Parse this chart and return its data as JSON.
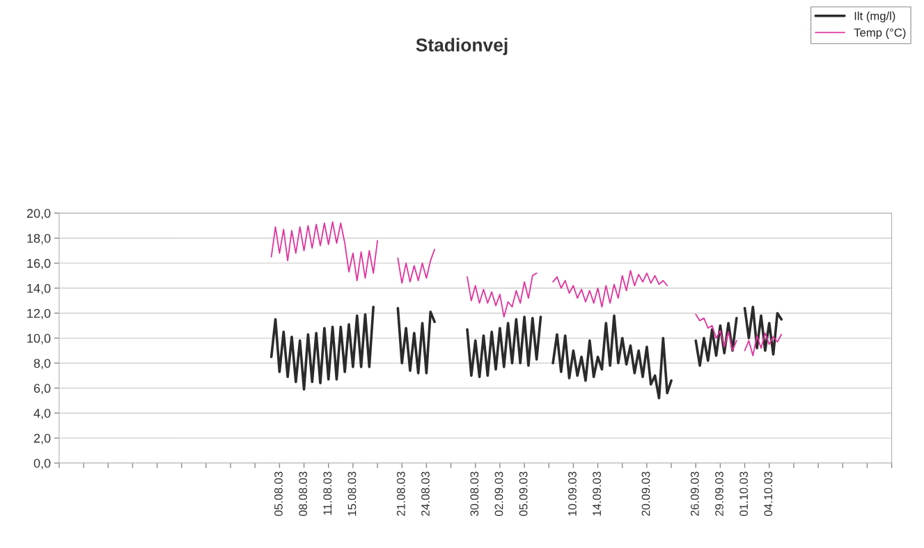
{
  "chart_data": {
    "type": "line",
    "title": "Stadionvej",
    "categories": [
      null,
      null,
      null,
      null,
      null,
      null,
      null,
      null,
      null,
      null,
      null,
      null,
      null,
      null,
      null,
      null,
      null,
      null,
      null,
      null,
      null,
      null,
      null,
      null,
      null,
      null,
      null,
      null,
      null,
      null,
      null,
      null,
      null,
      null,
      null,
      null,
      null,
      null,
      null,
      null,
      null,
      null,
      null,
      null,
      null,
      null,
      null,
      null,
      null,
      null,
      null,
      null,
      null,
      null,
      "05.08.03",
      null,
      null,
      null,
      null,
      null,
      "08.08.03",
      null,
      null,
      null,
      null,
      null,
      "11.08.03",
      null,
      null,
      null,
      null,
      null,
      "15.08.03",
      null,
      null,
      null,
      null,
      null,
      null,
      null,
      null,
      null,
      null,
      null,
      "21.08.03",
      null,
      null,
      null,
      null,
      null,
      "24.08.03",
      null,
      null,
      null,
      null,
      null,
      null,
      null,
      null,
      null,
      null,
      null,
      "30.08.03",
      null,
      null,
      null,
      null,
      null,
      "02.09.03",
      null,
      null,
      null,
      null,
      null,
      "05.09.03",
      null,
      null,
      null,
      null,
      null,
      null,
      null,
      null,
      null,
      null,
      null,
      "10.09.03",
      null,
      null,
      null,
      null,
      null,
      "14.09.03",
      null,
      null,
      null,
      null,
      null,
      null,
      null,
      null,
      null,
      null,
      null,
      "20.09.03",
      null,
      null,
      null,
      null,
      null,
      null,
      null,
      null,
      null,
      null,
      null,
      "26.09.03",
      null,
      null,
      null,
      null,
      null,
      "29.09.03",
      null,
      null,
      null,
      null,
      null,
      "01.10.03",
      null,
      null,
      null,
      null,
      null,
      "04.10.03",
      null,
      null,
      null,
      null,
      null,
      null,
      null,
      null,
      null,
      null,
      null,
      null,
      null,
      null,
      null,
      null,
      null,
      null,
      null,
      null,
      null,
      null,
      null,
      null,
      null,
      null,
      null,
      null,
      null,
      null
    ],
    "ylim": [
      0,
      20
    ],
    "yticks": [
      {
        "value": 0,
        "label": "0,0"
      },
      {
        "value": 2,
        "label": "2,0"
      },
      {
        "value": 4,
        "label": "4,0"
      },
      {
        "value": 6,
        "label": "6,0"
      },
      {
        "value": 8,
        "label": "8,0"
      },
      {
        "value": 10,
        "label": "10,0"
      },
      {
        "value": 12,
        "label": "12,0"
      },
      {
        "value": 14,
        "label": "14,0"
      },
      {
        "value": 16,
        "label": "16,0"
      },
      {
        "value": 18,
        "label": "18,0"
      },
      {
        "value": 20,
        "label": "20,0"
      }
    ],
    "grid": "y",
    "legend": "top right",
    "marker": "none",
    "line_style": "solid",
    "series": [
      {
        "name": "Ilt (mg/l)",
        "color": "#2b2b2b",
        "values": [
          null,
          null,
          null,
          null,
          null,
          null,
          null,
          null,
          null,
          null,
          null,
          null,
          null,
          null,
          null,
          null,
          null,
          null,
          null,
          null,
          null,
          null,
          null,
          null,
          null,
          null,
          null,
          null,
          null,
          null,
          null,
          null,
          null,
          null,
          null,
          null,
          null,
          null,
          null,
          null,
          null,
          null,
          null,
          null,
          null,
          null,
          null,
          null,
          null,
          null,
          null,
          null,
          8.5,
          11.5,
          7.3,
          10.5,
          6.9,
          10.1,
          6.5,
          9.8,
          5.9,
          10.3,
          6.5,
          10.4,
          6.4,
          10.8,
          6.7,
          10.9,
          6.7,
          10.9,
          7.3,
          11.1,
          7.7,
          11.8,
          7.7,
          11.9,
          7.7,
          12.5,
          null,
          null,
          null,
          null,
          null,
          12.4,
          8.0,
          10.8,
          7.4,
          10.4,
          7.2,
          11.2,
          7.2,
          12.1,
          11.3,
          null,
          null,
          null,
          null,
          null,
          null,
          null,
          10.7,
          7.0,
          9.8,
          6.9,
          10.2,
          7.0,
          10.5,
          7.5,
          10.8,
          7.7,
          11.2,
          8.0,
          11.5,
          8.0,
          11.7,
          7.8,
          11.6,
          8.3,
          11.7,
          null,
          null,
          8.0,
          10.3,
          7.3,
          10.2,
          6.8,
          9.0,
          7.0,
          8.5,
          6.6,
          9.8,
          6.9,
          8.5,
          7.5,
          11.2,
          7.8,
          11.8,
          8.0,
          10.0,
          7.9,
          9.4,
          7.2,
          9.0,
          6.9,
          9.3,
          6.3,
          7.0,
          5.2,
          10.0,
          5.6,
          6.6,
          null,
          null,
          null,
          null,
          null,
          9.8,
          7.8,
          10.0,
          8.2,
          10.7,
          8.6,
          11.0,
          8.8,
          11.2,
          9.0,
          11.6,
          null,
          12.4,
          10.0,
          12.5,
          9.2,
          11.8,
          9.0,
          11.2,
          8.7,
          12.0,
          11.5,
          null,
          null,
          null,
          null,
          null,
          null,
          null,
          null,
          null,
          null,
          null,
          null,
          null,
          null,
          null,
          null,
          null,
          null,
          null,
          null,
          null,
          null,
          null,
          null,
          null,
          null,
          null
        ]
      },
      {
        "name": "Temp (°C)",
        "color": "#e0339c",
        "values": [
          null,
          null,
          null,
          null,
          null,
          null,
          null,
          null,
          null,
          null,
          null,
          null,
          null,
          null,
          null,
          null,
          null,
          null,
          null,
          null,
          null,
          null,
          null,
          null,
          null,
          null,
          null,
          null,
          null,
          null,
          null,
          null,
          null,
          null,
          null,
          null,
          null,
          null,
          null,
          null,
          null,
          null,
          null,
          null,
          null,
          null,
          null,
          null,
          null,
          null,
          null,
          null,
          16.5,
          18.9,
          16.8,
          18.7,
          16.2,
          18.6,
          16.8,
          18.9,
          17.0,
          19.0,
          17.2,
          19.1,
          17.4,
          19.2,
          17.5,
          19.3,
          17.6,
          19.2,
          17.6,
          15.3,
          16.8,
          14.6,
          16.9,
          14.8,
          17.0,
          15.2,
          17.8,
          null,
          null,
          null,
          null,
          16.4,
          14.4,
          16.0,
          14.5,
          15.8,
          14.6,
          16.0,
          14.8,
          16.2,
          17.1,
          null,
          null,
          null,
          null,
          null,
          null,
          null,
          14.9,
          13.0,
          14.2,
          12.8,
          13.9,
          12.8,
          13.7,
          12.6,
          13.5,
          11.7,
          12.9,
          12.5,
          13.8,
          12.8,
          14.5,
          13.2,
          15.0,
          15.2,
          null,
          null,
          null,
          14.5,
          14.9,
          14.0,
          14.6,
          13.6,
          14.2,
          13.2,
          13.9,
          12.9,
          13.8,
          12.8,
          14.0,
          12.5,
          14.2,
          12.8,
          14.3,
          13.2,
          15.0,
          13.8,
          15.4,
          14.2,
          15.1,
          14.5,
          15.2,
          14.4,
          15.0,
          14.3,
          14.6,
          14.2,
          null,
          null,
          null,
          null,
          null,
          null,
          11.9,
          11.4,
          11.6,
          10.8,
          11.0,
          10.0,
          10.6,
          9.3,
          10.5,
          9.0,
          9.8,
          null,
          9.0,
          9.8,
          8.6,
          10.2,
          9.2,
          10.4,
          9.5,
          10.1,
          9.7,
          10.3,
          null,
          null,
          null,
          null,
          null,
          null,
          null,
          null,
          null,
          null,
          null,
          null,
          null,
          null,
          null,
          null,
          null,
          null,
          null,
          null,
          null,
          null,
          null,
          null,
          null,
          null,
          null
        ]
      }
    ]
  }
}
